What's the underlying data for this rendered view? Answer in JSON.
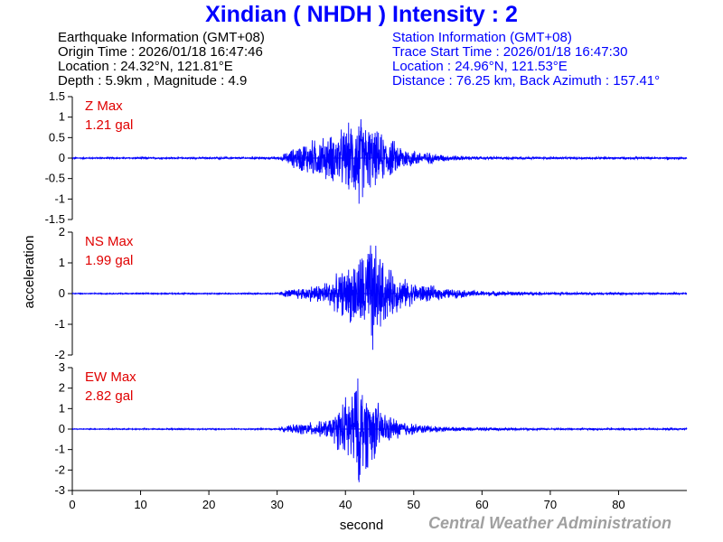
{
  "title": "Xindian ( NHDH ) Intensity : 2",
  "earthquake_info": [
    "Earthquake Information (GMT+08)",
    "Origin Time : 2026/01/18 16:47:46",
    "Location : 24.32°N, 121.81°E",
    "Depth : 5.9km , Magnitude : 4.9"
  ],
  "station_info": [
    "Station Information (GMT+08)",
    "Trace Start Time : 2026/01/18 16:47:30",
    "Location : 24.96°N, 121.53°E",
    "Distance : 76.25 km, Back Azimuth : 157.41°"
  ],
  "footer": "Central Weather Administration",
  "colors": {
    "title": "#0000ff",
    "trace": "#0000ff",
    "label": "#e00000",
    "footer": "#a0a0a0"
  },
  "chart_data": {
    "type": "line",
    "xlabel": "second",
    "ylabel": "acceleration",
    "xlim": [
      0,
      90
    ],
    "x_ticks": [
      0,
      10,
      20,
      30,
      40,
      50,
      60,
      70,
      80
    ],
    "grid": false,
    "series": [
      {
        "name": "Z Max",
        "label_value": "1.21 gal",
        "peak_abs": 1.21,
        "ylim": [
          -1.5,
          1.5
        ],
        "y_ticks": [
          -1.5,
          -1,
          -0.5,
          0,
          0.5,
          1,
          1.5
        ],
        "y_tick_labels": [
          "-1.5",
          "-1",
          "-0.5",
          "0",
          "0.5",
          "1",
          "1.5"
        ],
        "envelope_time": [
          0,
          30,
          31,
          34,
          36,
          38,
          40,
          42,
          44,
          46,
          48,
          50,
          55,
          60,
          70,
          80,
          90
        ],
        "envelope_amp": [
          0.02,
          0.03,
          0.12,
          0.45,
          0.55,
          0.65,
          0.85,
          1.21,
          0.8,
          0.6,
          0.38,
          0.22,
          0.08,
          0.04,
          0.03,
          0.03,
          0.03
        ]
      },
      {
        "name": "NS Max",
        "label_value": "1.99 gal",
        "peak_abs": 1.99,
        "ylim": [
          -2,
          2
        ],
        "y_ticks": [
          -2,
          -1,
          0,
          1,
          2
        ],
        "y_tick_labels": [
          "-2",
          "-1",
          "0",
          "1",
          "2"
        ],
        "envelope_time": [
          0,
          30,
          31,
          34,
          36,
          38,
          40,
          42,
          44,
          46,
          48,
          50,
          55,
          60,
          70,
          80,
          90
        ],
        "envelope_amp": [
          0.02,
          0.03,
          0.12,
          0.25,
          0.35,
          0.55,
          0.9,
          1.4,
          1.99,
          1.0,
          0.6,
          0.4,
          0.18,
          0.1,
          0.05,
          0.04,
          0.03
        ]
      },
      {
        "name": "EW Max",
        "label_value": "2.82 gal",
        "peak_abs": 2.82,
        "ylim": [
          -3,
          3
        ],
        "y_ticks": [
          -3,
          -2,
          -1,
          0,
          1,
          2,
          3
        ],
        "y_tick_labels": [
          "-3",
          "-2",
          "-1",
          "0",
          "1",
          "2",
          "3"
        ],
        "envelope_time": [
          0,
          30,
          31,
          34,
          36,
          38,
          40,
          42,
          44,
          46,
          48,
          50,
          55,
          60,
          70,
          80,
          90
        ],
        "envelope_amp": [
          0.03,
          0.04,
          0.15,
          0.35,
          0.4,
          0.6,
          1.8,
          2.82,
          1.8,
          0.8,
          0.5,
          0.3,
          0.12,
          0.08,
          0.05,
          0.05,
          0.04
        ]
      }
    ]
  }
}
